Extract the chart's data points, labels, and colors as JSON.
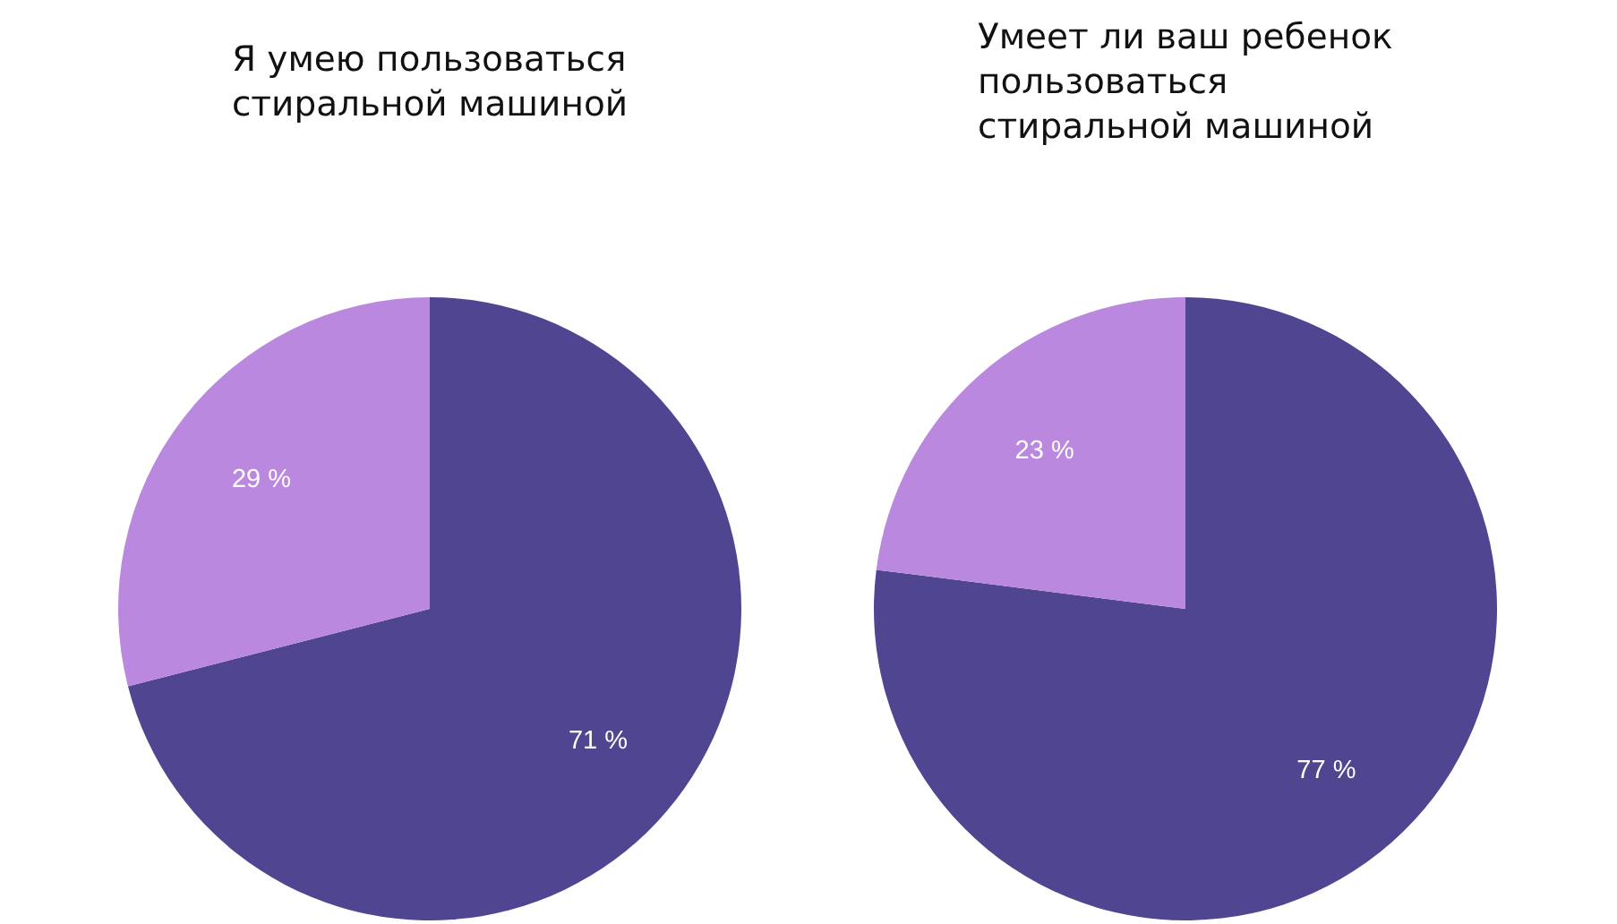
{
  "chart_data": [
    {
      "type": "pie",
      "title": "Я умею пользоваться\nстиральной машиной",
      "categories": [
        null,
        null
      ],
      "values": [
        71,
        29
      ],
      "colors": [
        "#4f4590",
        "#bb88e0"
      ],
      "value_labels": [
        "71 %",
        "29 %"
      ]
    },
    {
      "type": "pie",
      "title": "Умеет ли ваш ребенок\nпользоваться\nстиральной машиной",
      "categories": [
        null,
        null
      ],
      "values": [
        77,
        23
      ],
      "colors": [
        "#4f4590",
        "#bb88e0"
      ],
      "value_labels": [
        "77 %",
        "23 %"
      ]
    }
  ]
}
